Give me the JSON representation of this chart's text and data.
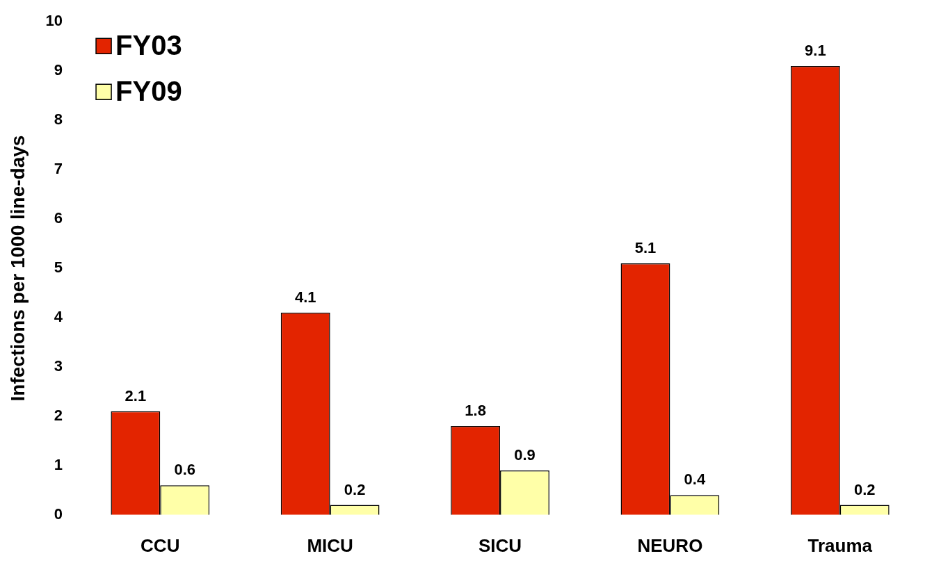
{
  "chart_data": {
    "type": "bar",
    "ylabel": "Infections per 1000 line-days",
    "categories": [
      "CCU",
      "MICU",
      "SICU",
      "NEURO",
      "Trauma"
    ],
    "series": [
      {
        "name": "FY03",
        "color": "#e32400",
        "values": [
          2.1,
          4.1,
          1.8,
          5.1,
          9.1
        ]
      },
      {
        "name": "FY09",
        "color": "#ffffa8",
        "values": [
          0.6,
          0.2,
          0.9,
          0.4,
          0.2
        ]
      }
    ],
    "ylim": [
      0,
      10
    ],
    "yticks": [
      0,
      1,
      2,
      3,
      4,
      5,
      6,
      7,
      8,
      9,
      10
    ],
    "data_labels": true,
    "legend": "top left",
    "grid": false
  }
}
